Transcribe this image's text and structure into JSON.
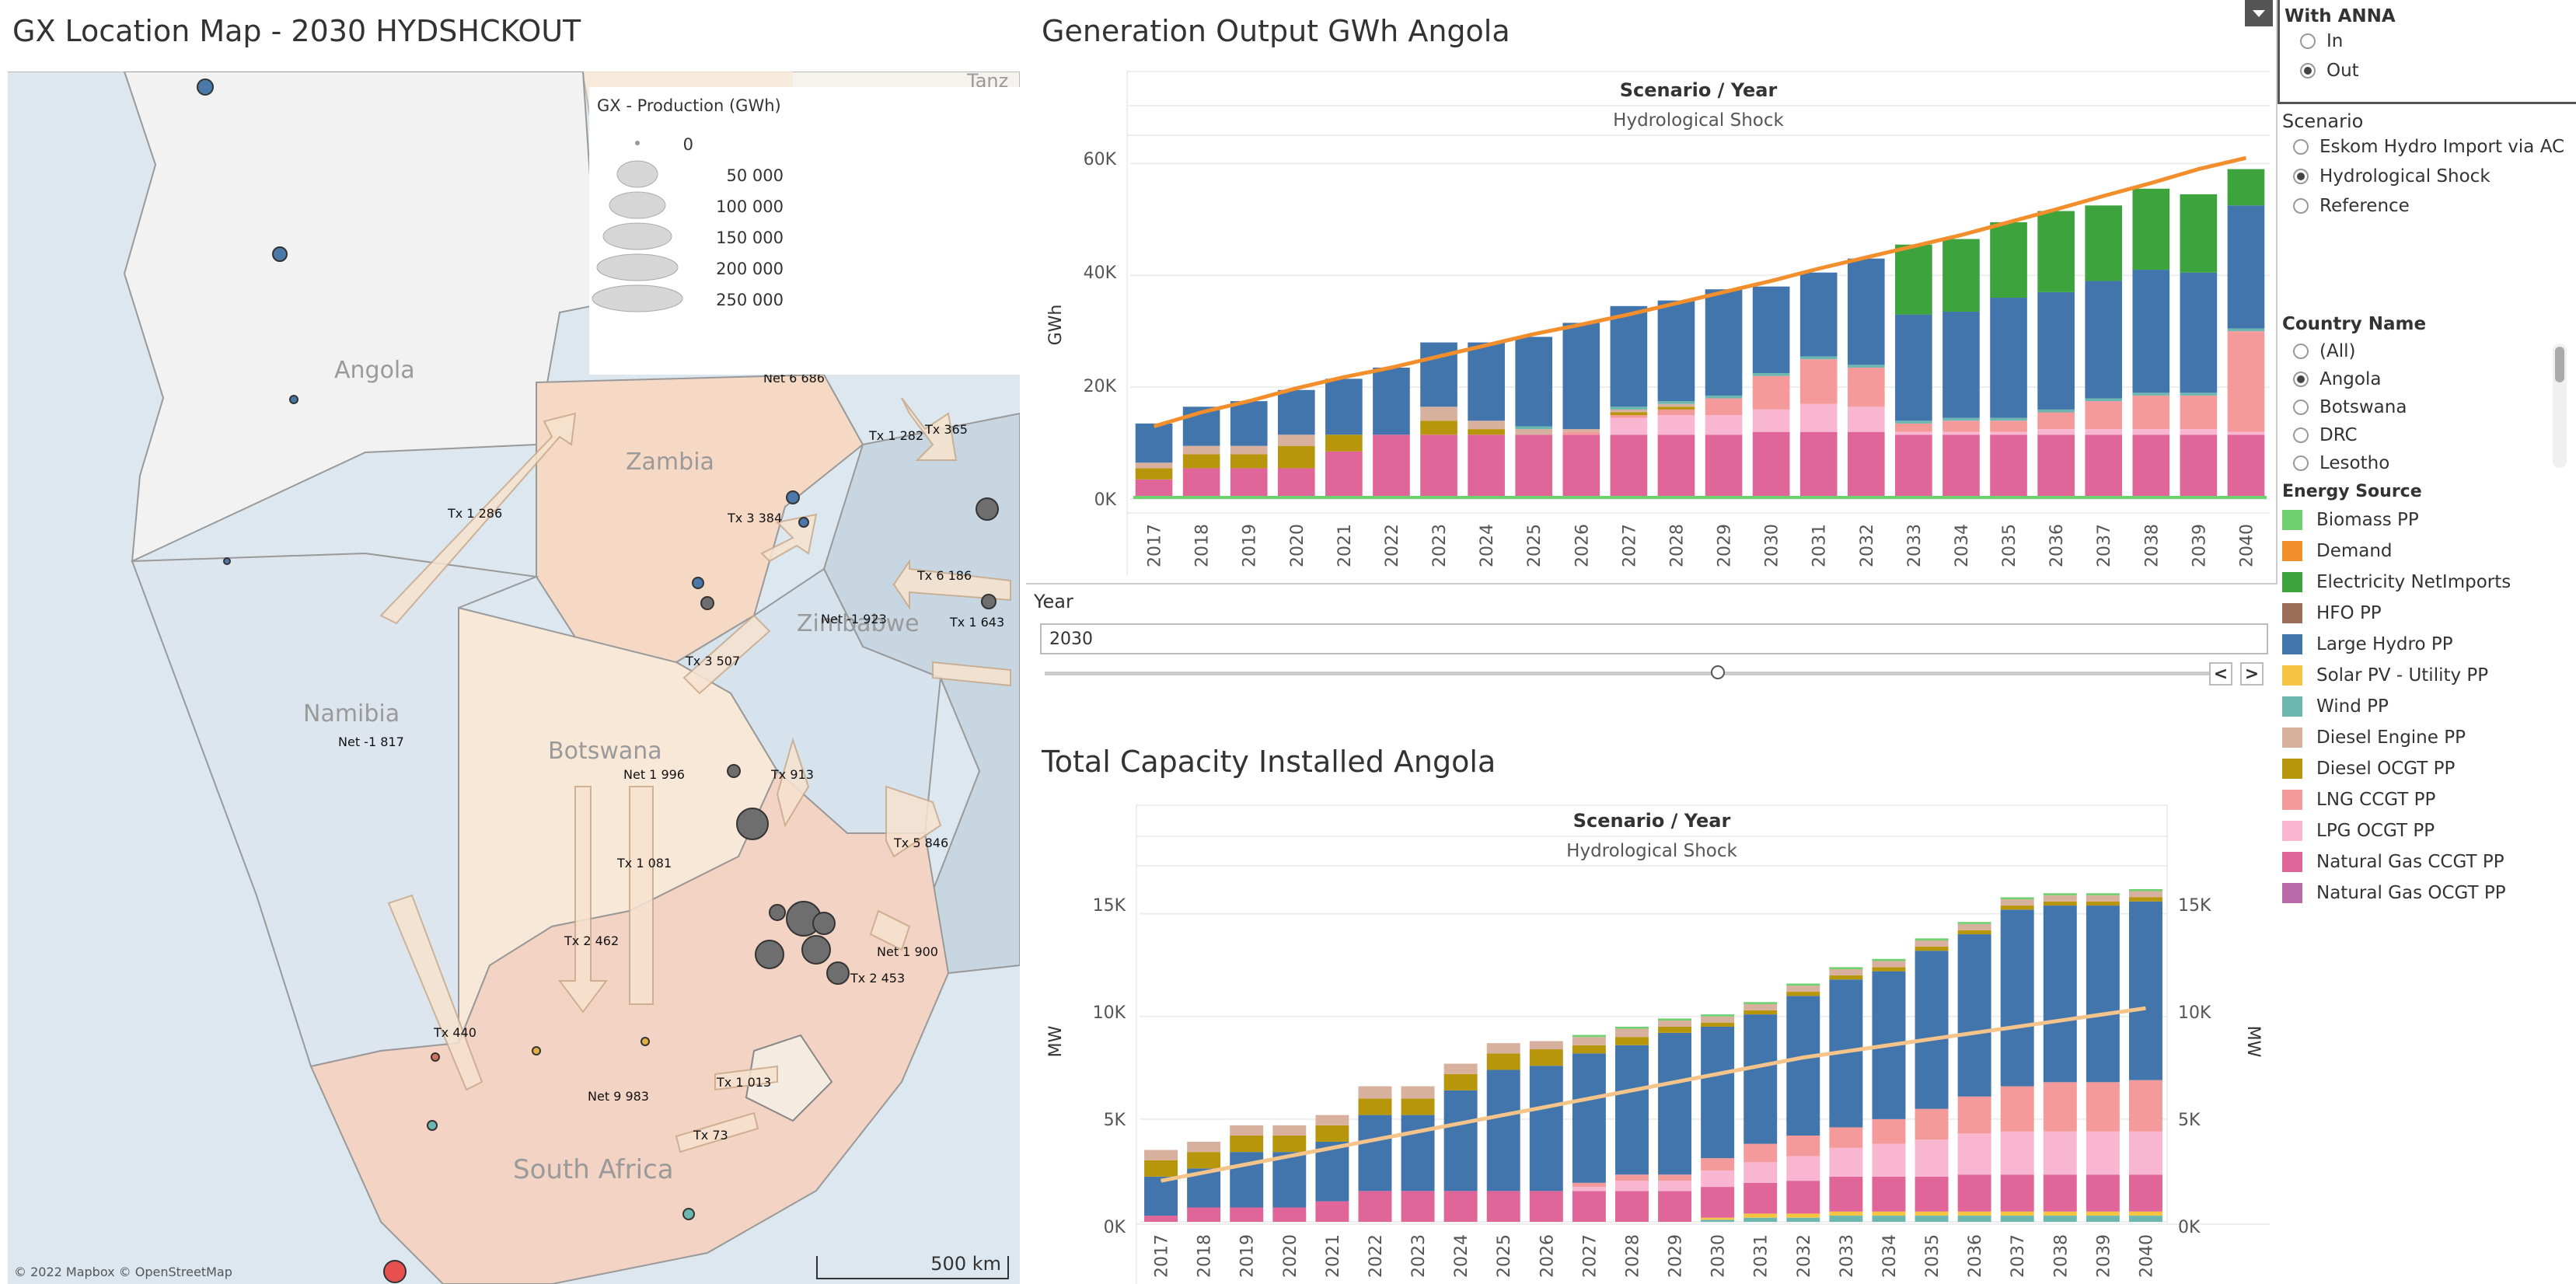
{
  "map": {
    "title": "GX Location Map  - 2030  HYDSHCKOUT",
    "legend_title": "GX - Production (GWh)",
    "legend_values": [
      "0",
      "50 000",
      "100 000",
      "150 000",
      "200 000",
      "250 000"
    ],
    "country_labels": [
      "Angola",
      "Zambia",
      "Namibia",
      "Botswana",
      "Zimbabwe",
      "South Africa",
      "Tanz"
    ],
    "flow_labels": [
      "Net 6 686",
      "Tx 1 282",
      "Tx 365",
      "Tx 1 286",
      "Tx 3 384",
      "Tx 6 186",
      "Net -1 923",
      "Tx 1 643",
      "Tx 3 507",
      "Net -1 817",
      "Tx 913",
      "Net 1 996",
      "Tx 5 846",
      "Tx 1 081",
      "Tx 2 462",
      "Net 1 900",
      "Tx 2 453",
      "Tx 440",
      "Tx 1 013",
      "Net 9 983",
      "Tx 73"
    ],
    "attribution": "© 2022 Mapbox © OpenStreetMap",
    "scale_label": "500 km"
  },
  "gen_chart": {
    "title": "Generation Output GWh  Angola",
    "header": "Scenario / Year",
    "subheader": "Hydrological Shock",
    "ylabel": "GWh",
    "ticks": [
      "60K",
      "40K",
      "20K",
      "0K"
    ]
  },
  "cap_chart": {
    "title": "Total Capacity Installed Angola",
    "header": "Scenario / Year",
    "subheader": "Hydrological Shock",
    "ylabel": "MW",
    "ylabel_right": "MW",
    "ticks": [
      "15K",
      "10K",
      "5K",
      "0K"
    ]
  },
  "years": [
    "2017",
    "2018",
    "2019",
    "2020",
    "2021",
    "2022",
    "2023",
    "2024",
    "2025",
    "2026",
    "2027",
    "2028",
    "2029",
    "2030",
    "2031",
    "2032",
    "2033",
    "2034",
    "2035",
    "2036",
    "2037",
    "2038",
    "2039",
    "2040"
  ],
  "year_filter": {
    "label": "Year",
    "value": "2030",
    "prev_icon": "<",
    "next_icon": ">"
  },
  "sidebar": {
    "with_anna": {
      "label": "With ANNA",
      "options": [
        "In",
        "Out"
      ],
      "selected": "Out"
    },
    "scenario": {
      "label": "Scenario",
      "options": [
        "Eskom Hydro Import via AC",
        "Hydrological Shock",
        "Reference"
      ],
      "selected": "Hydrological Shock"
    },
    "country": {
      "label": "Country Name",
      "options": [
        "(All)",
        "Angola",
        "Botswana",
        "DRC",
        "Lesotho"
      ],
      "selected": "Angola"
    },
    "energy_source": {
      "label": "Energy Source",
      "items": [
        {
          "name": "Biomass PP",
          "color": "#6fd06f"
        },
        {
          "name": "Demand",
          "color": "#f28e2b"
        },
        {
          "name": "Electricity NetImports",
          "color": "#3da33d"
        },
        {
          "name": "HFO PP",
          "color": "#9c6e5a"
        },
        {
          "name": "Large Hydro PP",
          "color": "#4275ab"
        },
        {
          "name": "Solar PV - Utility PP",
          "color": "#f5c542"
        },
        {
          "name": "Wind PP",
          "color": "#6cb8b0"
        },
        {
          "name": "Diesel Engine PP",
          "color": "#d8b19e"
        },
        {
          "name": "Diesel OCGT PP",
          "color": "#b8960c"
        },
        {
          "name": "LNG CCGT PP",
          "color": "#f59a9a"
        },
        {
          "name": "LPG OCGT PP",
          "color": "#f8b6d0"
        },
        {
          "name": "Natural Gas CCGT PP",
          "color": "#e0669a"
        },
        {
          "name": "Natural Gas OCGT PP",
          "color": "#b86aa9"
        }
      ]
    }
  },
  "chart_data": [
    {
      "type": "bar",
      "title": "Generation Output GWh  Angola",
      "ylabel": "GWh",
      "ylim": [
        0,
        62000
      ],
      "categories": [
        "2017",
        "2018",
        "2019",
        "2020",
        "2021",
        "2022",
        "2023",
        "2024",
        "2025",
        "2026",
        "2027",
        "2028",
        "2029",
        "2030",
        "2031",
        "2032",
        "2033",
        "2034",
        "2035",
        "2036",
        "2037",
        "2038",
        "2039",
        "2040"
      ],
      "series": [
        {
          "name": "Natural Gas CCGT PP",
          "color": "#e0669a",
          "values": [
            3500,
            5500,
            5500,
            5500,
            8500,
            11500,
            11500,
            11500,
            11500,
            11500,
            11500,
            11500,
            11500,
            12000,
            12000,
            12000,
            11500,
            11500,
            11500,
            11500,
            11500,
            11500,
            11500,
            11500
          ]
        },
        {
          "name": "LPG OCGT PP",
          "color": "#f8b6d0",
          "values": [
            0,
            0,
            0,
            0,
            0,
            0,
            0,
            0,
            0,
            0,
            3000,
            3500,
            3500,
            4000,
            5000,
            4500,
            500,
            500,
            500,
            1000,
            1000,
            1000,
            1000,
            500
          ]
        },
        {
          "name": "LNG CCGT PP",
          "color": "#f59a9a",
          "values": [
            0,
            0,
            0,
            0,
            0,
            0,
            0,
            0,
            0,
            500,
            500,
            1000,
            3000,
            6000,
            8000,
            7000,
            1500,
            2000,
            2000,
            3000,
            5000,
            6000,
            6000,
            18000
          ]
        },
        {
          "name": "Diesel OCGT PP",
          "color": "#b8960c",
          "values": [
            2000,
            2500,
            2500,
            4000,
            3000,
            0,
            2500,
            1000,
            0,
            0,
            500,
            500,
            0,
            0,
            0,
            0,
            0,
            0,
            0,
            0,
            0,
            0,
            0,
            0
          ]
        },
        {
          "name": "Diesel Engine PP",
          "color": "#d8b19e",
          "values": [
            1000,
            1500,
            1500,
            2000,
            0,
            0,
            2500,
            1500,
            1000,
            500,
            500,
            500,
            0,
            0,
            0,
            0,
            0,
            0,
            0,
            0,
            0,
            0,
            0,
            0
          ]
        },
        {
          "name": "Wind PP",
          "color": "#6cb8b0",
          "values": [
            0,
            0,
            0,
            0,
            0,
            0,
            0,
            0,
            500,
            0,
            500,
            500,
            500,
            500,
            500,
            500,
            500,
            500,
            500,
            500,
            500,
            500,
            500,
            500
          ]
        },
        {
          "name": "Large Hydro PP",
          "color": "#4275ab",
          "values": [
            7000,
            7000,
            8000,
            8000,
            10000,
            12000,
            11500,
            14000,
            16000,
            19000,
            18000,
            18000,
            19000,
            15500,
            15000,
            19000,
            19000,
            19000,
            21500,
            21000,
            21000,
            22000,
            21500,
            22000
          ]
        },
        {
          "name": "Electricity NetImports",
          "color": "#3da33d",
          "values": [
            0,
            0,
            0,
            0,
            0,
            0,
            0,
            0,
            0,
            0,
            0,
            0,
            0,
            0,
            0,
            0,
            12500,
            13000,
            13500,
            14500,
            13500,
            14500,
            14000,
            6500
          ]
        },
        {
          "name": "Biomass PP",
          "color": "#6fd06f",
          "values": [
            0,
            0,
            0,
            0,
            0,
            0,
            0,
            0,
            0,
            0,
            0,
            0,
            0,
            0,
            0,
            0,
            0,
            0,
            0,
            0,
            0,
            0,
            0,
            0
          ]
        }
      ],
      "demand": {
        "name": "Demand",
        "color": "#f28e2b",
        "values": [
          13000,
          15500,
          17500,
          19800,
          21800,
          23500,
          25500,
          27500,
          29500,
          31200,
          33000,
          35000,
          37000,
          39000,
          41200,
          43200,
          45200,
          47200,
          49500,
          51800,
          54200,
          56500,
          59000,
          61000
        ]
      }
    },
    {
      "type": "bar",
      "title": "Total Capacity Installed Angola",
      "ylabel": "MW",
      "ylim": [
        0,
        16500
      ],
      "categories": [
        "2017",
        "2018",
        "2019",
        "2020",
        "2021",
        "2022",
        "2023",
        "2024",
        "2025",
        "2026",
        "2027",
        "2028",
        "2029",
        "2030",
        "2031",
        "2032",
        "2033",
        "2034",
        "2035",
        "2036",
        "2037",
        "2038",
        "2039",
        "2040"
      ],
      "series": [
        {
          "name": "Wind PP",
          "color": "#6cb8b0",
          "values": [
            0,
            0,
            0,
            0,
            0,
            0,
            0,
            0,
            0,
            0,
            0,
            0,
            0,
            100,
            200,
            200,
            300,
            300,
            300,
            300,
            300,
            300,
            300,
            300
          ]
        },
        {
          "name": "Solar PV - Utility PP",
          "color": "#f5c542",
          "values": [
            0,
            0,
            0,
            0,
            0,
            0,
            0,
            0,
            0,
            0,
            0,
            0,
            0,
            100,
            200,
            200,
            200,
            200,
            200,
            200,
            200,
            200,
            200,
            200
          ]
        },
        {
          "name": "Natural Gas CCGT PP",
          "color": "#e0669a",
          "values": [
            300,
            700,
            700,
            700,
            1000,
            1500,
            1500,
            1500,
            1500,
            1500,
            1500,
            1500,
            1500,
            1500,
            1500,
            1600,
            1700,
            1700,
            1700,
            1800,
            1800,
            1800,
            1800,
            1800
          ]
        },
        {
          "name": "LPG OCGT PP",
          "color": "#f8b6d0",
          "values": [
            0,
            0,
            0,
            0,
            0,
            0,
            0,
            0,
            0,
            0,
            200,
            500,
            500,
            800,
            1000,
            1200,
            1400,
            1600,
            1800,
            2000,
            2100,
            2100,
            2100,
            2100
          ]
        },
        {
          "name": "LNG CCGT PP",
          "color": "#f59a9a",
          "values": [
            0,
            0,
            0,
            0,
            0,
            0,
            0,
            0,
            0,
            0,
            200,
            300,
            300,
            600,
            900,
            1000,
            1000,
            1200,
            1500,
            1800,
            2200,
            2400,
            2400,
            2500
          ]
        },
        {
          "name": "Large Hydro PP",
          "color": "#4275ab",
          "values": [
            1900,
            1900,
            2700,
            2700,
            2900,
            3700,
            3700,
            4900,
            5900,
            6100,
            6300,
            6300,
            6900,
            6400,
            6300,
            6800,
            7200,
            7200,
            7700,
            7900,
            8600,
            8600,
            8600,
            8700
          ]
        },
        {
          "name": "Diesel OCGT PP",
          "color": "#b8960c",
          "values": [
            800,
            800,
            800,
            800,
            800,
            800,
            800,
            800,
            800,
            800,
            400,
            400,
            300,
            200,
            200,
            200,
            200,
            200,
            200,
            200,
            200,
            200,
            200,
            200
          ]
        },
        {
          "name": "Diesel Engine PP",
          "color": "#d8b19e",
          "values": [
            500,
            500,
            500,
            500,
            500,
            600,
            600,
            500,
            500,
            400,
            400,
            400,
            300,
            300,
            300,
            300,
            300,
            300,
            300,
            300,
            300,
            300,
            300,
            300
          ]
        },
        {
          "name": "Biomass PP",
          "color": "#6fd06f",
          "values": [
            0,
            0,
            0,
            0,
            0,
            0,
            0,
            0,
            0,
            0,
            100,
            100,
            100,
            100,
            100,
            100,
            100,
            100,
            100,
            100,
            100,
            100,
            100,
            100
          ]
        }
      ],
      "line": {
        "color": "#f5c48a",
        "values": [
          2000,
          2400,
          2800,
          3200,
          3600,
          4000,
          4400,
          4800,
          5200,
          5600,
          6000,
          6400,
          6800,
          7200,
          7600,
          8000,
          8300,
          8600,
          8900,
          9200,
          9500,
          9800,
          10100,
          10400
        ]
      }
    }
  ]
}
